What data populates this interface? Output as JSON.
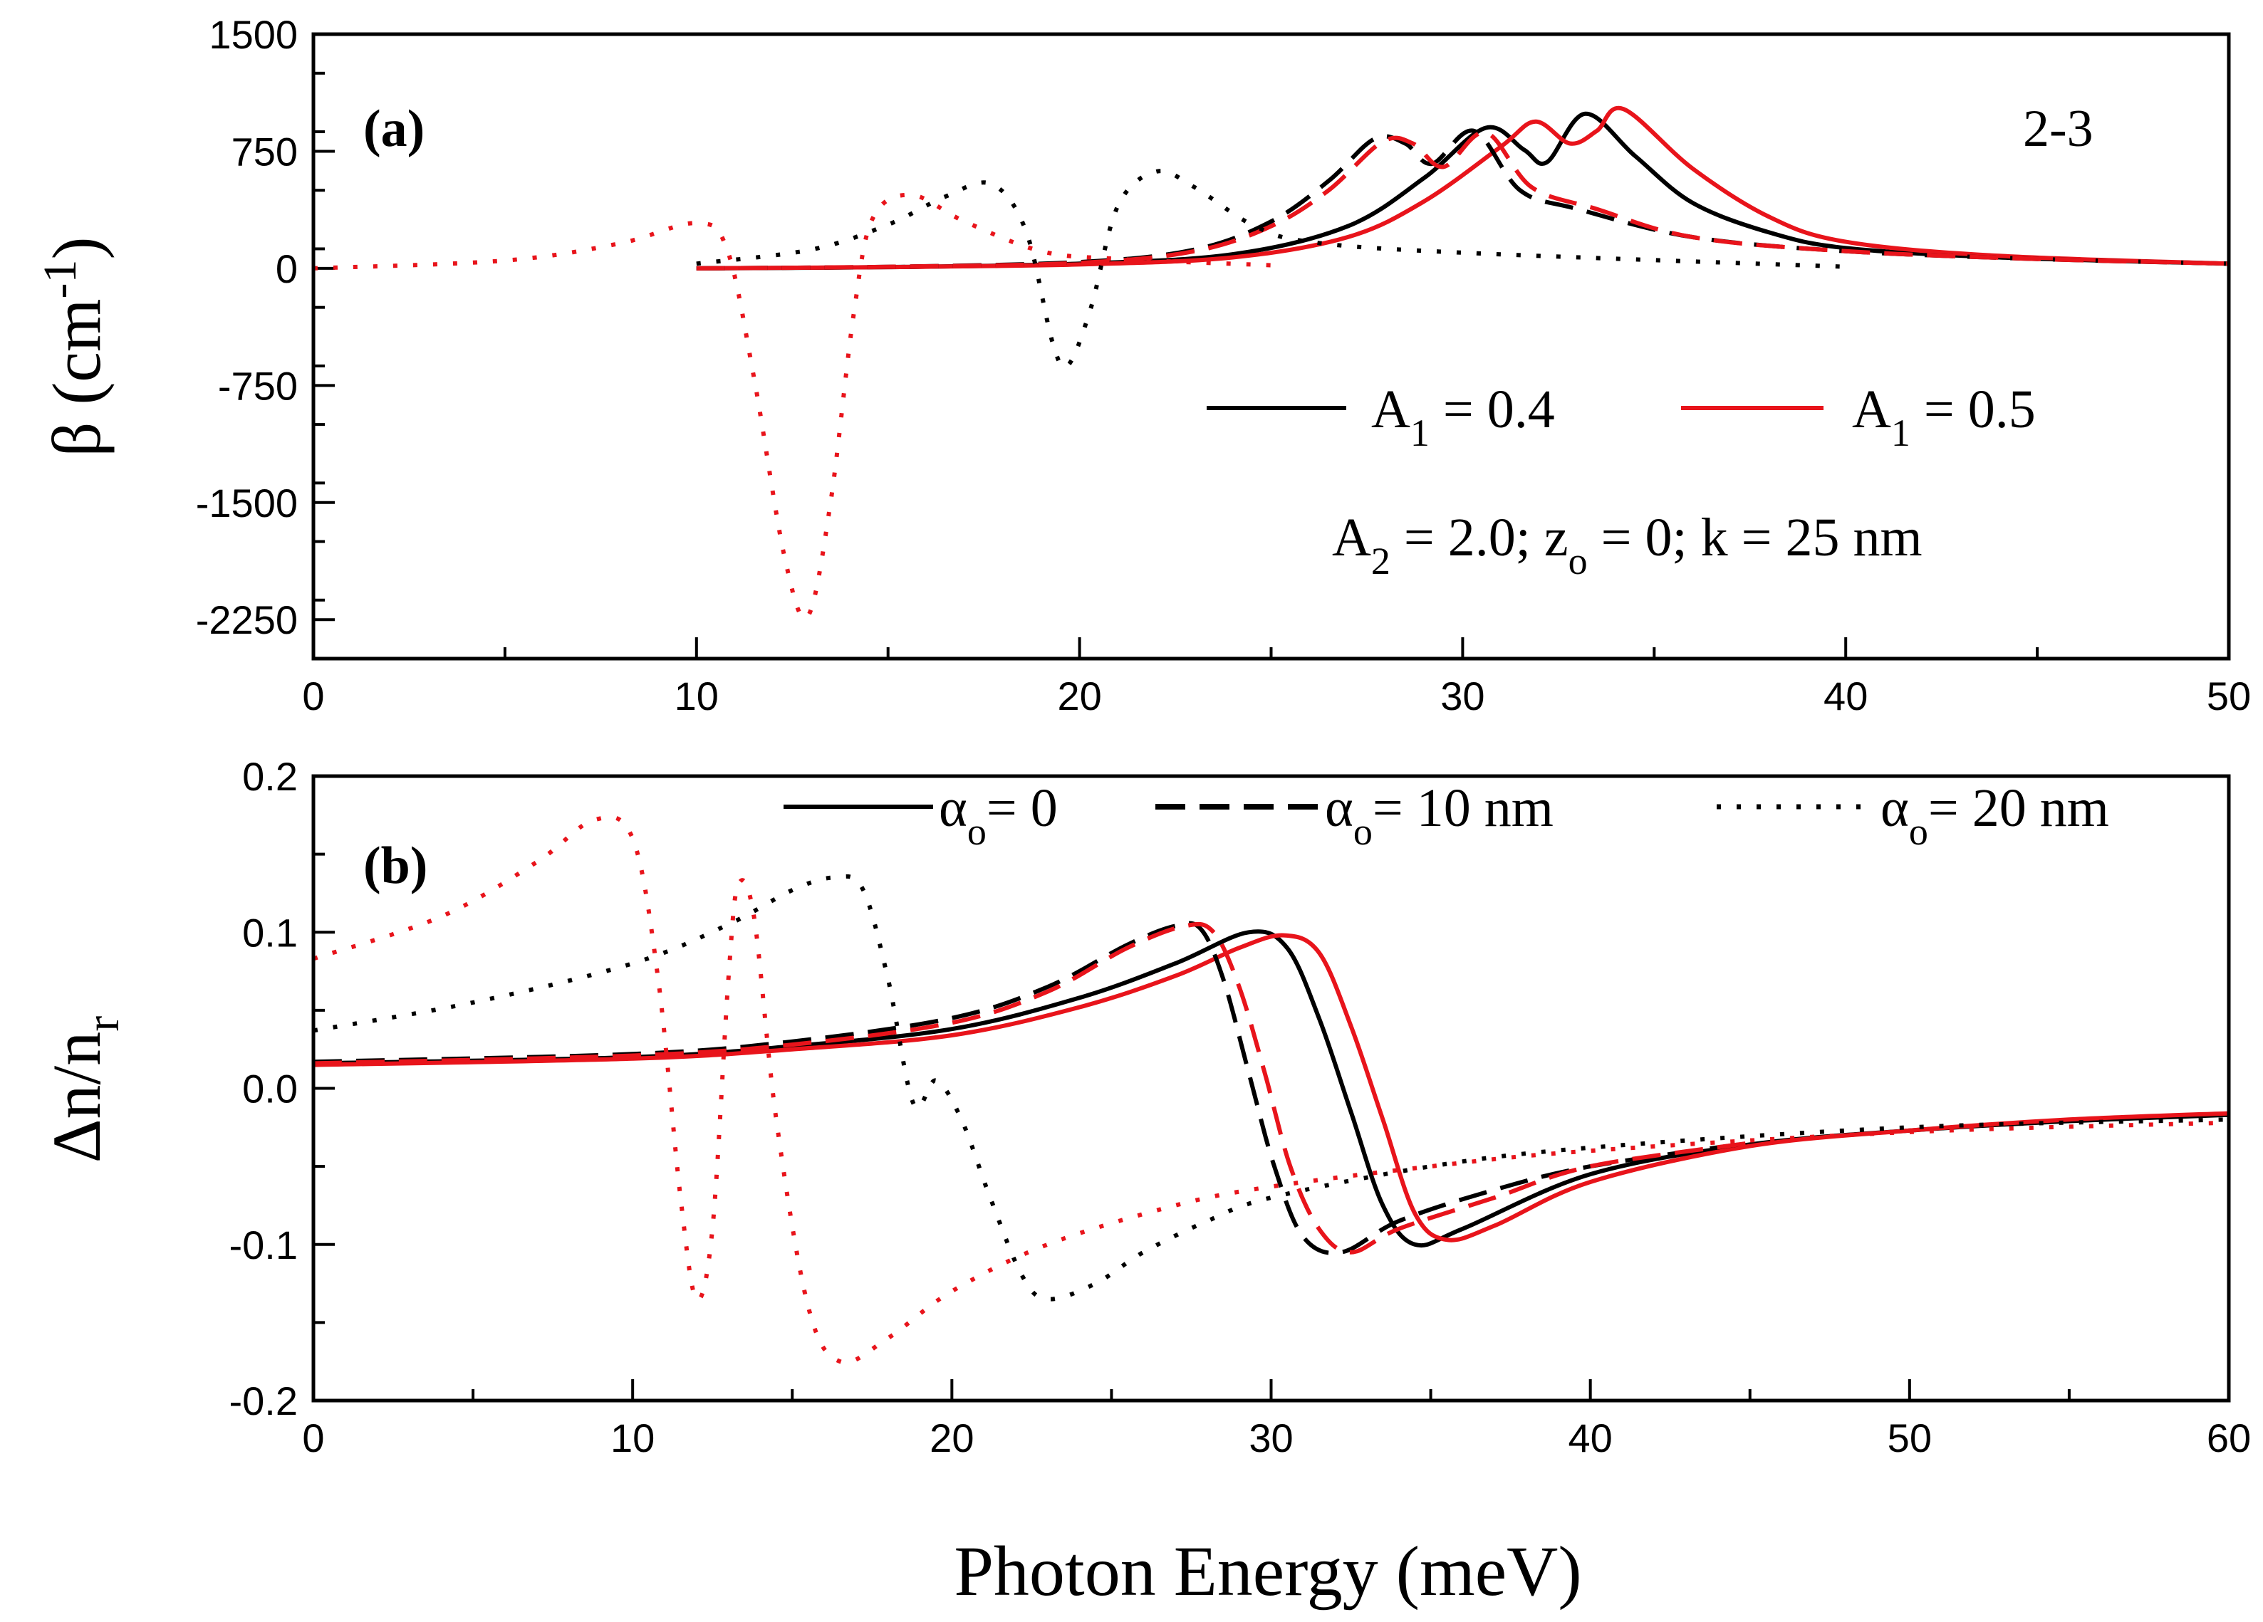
{
  "chart_data": [
    {
      "id": "a",
      "type": "line",
      "panel_label": "(a)",
      "corner_label": "2-3",
      "xlabel": "",
      "ylabel": "β (cm⁻¹)",
      "xlim": [
        0,
        50
      ],
      "ylim": [
        -2500,
        1500
      ],
      "xticks": [
        0,
        10,
        20,
        30,
        40,
        50
      ],
      "yticks": [
        1500,
        750,
        0,
        -750,
        -1500,
        -2250
      ],
      "ytick_labels": [
        "1500",
        "750",
        "0",
        "-750",
        "-1500",
        "-2250"
      ],
      "legend": [
        {
          "label": "A1 = 0.4",
          "color": "#000000"
        },
        {
          "label": "A1 = 0.5",
          "color": "#e8141b"
        }
      ],
      "annotation": "A2 = 2.0; zo = 0; k = 25 nm",
      "series": [
        {
          "name": "A1 = 0.4, αo = 0",
          "color": "#000000",
          "style": "solid",
          "x": [
            10,
            15,
            20,
            24,
            27,
            29,
            30.6,
            31.6,
            32.2,
            33.2,
            34.5,
            36,
            38,
            40,
            44,
            50
          ],
          "y": [
            0,
            8,
            30,
            90,
            270,
            580,
            900,
            760,
            680,
            990,
            720,
            420,
            230,
            130,
            70,
            30
          ]
        },
        {
          "name": "A1 = 0.5, αo = 0",
          "color": "#e8141b",
          "style": "solid",
          "x": [
            10,
            15,
            20,
            24,
            27,
            29,
            31,
            31.9,
            32.8,
            33.5,
            34.2,
            36,
            38,
            40,
            44,
            50
          ],
          "y": [
            0,
            8,
            25,
            70,
            200,
            430,
            780,
            940,
            800,
            880,
            1020,
            640,
            330,
            170,
            80,
            30
          ]
        },
        {
          "name": "A1 = 0.4, αo = 10 nm",
          "color": "#000000",
          "style": "dashed",
          "x": [
            10,
            15,
            20,
            23,
            25,
            26.5,
            27.7,
            28.5,
            29.2,
            30.3,
            31.5,
            33,
            36,
            40,
            45,
            50
          ],
          "y": [
            0,
            10,
            40,
            120,
            300,
            560,
            830,
            800,
            670,
            880,
            500,
            380,
            200,
            110,
            60,
            30
          ]
        },
        {
          "name": "A1 = 0.5, αo = 10 nm",
          "color": "#e8141b",
          "style": "dashed",
          "x": [
            10,
            15,
            20,
            23,
            25,
            26.5,
            27.9,
            28.7,
            29.5,
            30.6,
            31.8,
            33.5,
            36,
            40,
            45,
            50
          ],
          "y": [
            0,
            10,
            35,
            110,
            270,
            500,
            810,
            800,
            650,
            870,
            520,
            380,
            200,
            110,
            60,
            30
          ]
        },
        {
          "name": "A1 = 0.4, αo = 20 nm",
          "color": "#000000",
          "style": "dotted",
          "x": [
            10,
            13,
            15,
            16.5,
            17.7,
            18.6,
            19.3,
            19.7,
            20.3,
            21,
            22,
            23,
            24.5,
            26,
            30,
            40
          ],
          "y": [
            30,
            120,
            280,
            460,
            540,
            240,
            -480,
            -620,
            -250,
            400,
            620,
            520,
            280,
            170,
            100,
            10
          ]
        },
        {
          "name": "A1 = 0.5, αo = 20 nm",
          "color": "#e8141b",
          "style": "dotted",
          "x": [
            0,
            5,
            8,
            10,
            10.8,
            11.5,
            12.3,
            12.9,
            13.5,
            14.1,
            14.6,
            15.6,
            17,
            19,
            21,
            25
          ],
          "y": [
            0,
            50,
            160,
            290,
            120,
            -700,
            -1850,
            -2230,
            -1500,
            -300,
            320,
            470,
            300,
            110,
            60,
            20
          ]
        }
      ]
    },
    {
      "id": "b",
      "type": "line",
      "panel_label": "(b)",
      "xlabel": "Photon Energy (meV)",
      "ylabel": "Δn/nr",
      "xlim": [
        0,
        60
      ],
      "ylim": [
        -0.2,
        0.2
      ],
      "xticks": [
        0,
        10,
        20,
        30,
        40,
        50,
        60
      ],
      "yticks": [
        0.2,
        0.1,
        0.0,
        -0.1,
        -0.2
      ],
      "ytick_labels": [
        "0.2",
        "0.1",
        "0.0",
        "-0.1",
        "-0.2"
      ],
      "legend": [
        {
          "label": "αo = 0",
          "style": "solid"
        },
        {
          "label": "αo = 10 nm",
          "style": "dashed"
        },
        {
          "label": "αo = 20 nm",
          "style": "dotted"
        }
      ],
      "series": [
        {
          "name": "A1 = 0.4, αo = 0",
          "color": "#000000",
          "style": "solid",
          "x": [
            0,
            10,
            15,
            20,
            24,
            27,
            29.3,
            30.5,
            31.5,
            32.5,
            33.5,
            34.5,
            36,
            40,
            45,
            50,
            55,
            60
          ],
          "y": [
            0.016,
            0.02,
            0.027,
            0.038,
            0.058,
            0.08,
            0.1,
            0.09,
            0.045,
            -0.015,
            -0.075,
            -0.1,
            -0.09,
            -0.055,
            -0.036,
            -0.027,
            -0.021,
            -0.017
          ]
        },
        {
          "name": "A1 = 0.5, αo = 0",
          "color": "#e8141b",
          "style": "solid",
          "x": [
            0,
            10,
            15,
            20,
            24,
            27,
            29,
            30.4,
            31.5,
            32.5,
            33.5,
            34.5,
            35.5,
            37,
            40,
            45,
            50,
            55,
            60
          ],
          "y": [
            0.015,
            0.019,
            0.025,
            0.034,
            0.052,
            0.072,
            0.09,
            0.098,
            0.087,
            0.04,
            -0.02,
            -0.08,
            -0.097,
            -0.088,
            -0.06,
            -0.037,
            -0.027,
            -0.02,
            -0.016
          ]
        },
        {
          "name": "A1 = 0.4, αo = 10 nm",
          "color": "#000000",
          "style": "dashed",
          "x": [
            0,
            10,
            15,
            20,
            23,
            25.5,
            27,
            27.8,
            28.5,
            29.3,
            30.1,
            31,
            32.2,
            34,
            37,
            40,
            45
          ],
          "y": [
            0.017,
            0.022,
            0.03,
            0.045,
            0.065,
            0.092,
            0.104,
            0.102,
            0.07,
            0.01,
            -0.05,
            -0.095,
            -0.105,
            -0.085,
            -0.065,
            -0.05,
            -0.035
          ]
        },
        {
          "name": "A1 = 0.5, αo = 10 nm",
          "color": "#e8141b",
          "style": "dashed",
          "x": [
            0,
            10,
            15,
            20,
            23,
            25.5,
            27.3,
            28.2,
            29,
            29.8,
            30.6,
            31.5,
            32.5,
            34,
            37,
            40,
            45
          ],
          "y": [
            0.016,
            0.021,
            0.028,
            0.042,
            0.062,
            0.09,
            0.104,
            0.1,
            0.065,
            0.01,
            -0.05,
            -0.09,
            -0.105,
            -0.09,
            -0.07,
            -0.05,
            -0.035
          ]
        },
        {
          "name": "A1 = 0.4, αo = 20 nm",
          "color": "#000000",
          "style": "dotted",
          "x": [
            0,
            5,
            10,
            13,
            15,
            16.3,
            17.2,
            18,
            18.8,
            19.5,
            20.3,
            21.2,
            22.2,
            23,
            24.5,
            26,
            28,
            30,
            35,
            40,
            50,
            60
          ],
          "y": [
            0.037,
            0.055,
            0.08,
            0.105,
            0.127,
            0.135,
            0.128,
            0.07,
            -0.01,
            0.005,
            -0.02,
            -0.07,
            -0.12,
            -0.135,
            -0.125,
            -0.105,
            -0.085,
            -0.07,
            -0.05,
            -0.038,
            -0.025,
            -0.02
          ]
        },
        {
          "name": "A1 = 0.5, αo = 20 nm",
          "color": "#e8141b",
          "style": "dotted",
          "x": [
            0,
            4,
            7,
            8.8,
            10,
            10.8,
            11.5,
            12,
            12.5,
            13,
            13.3,
            13.8,
            14.5,
            15.5,
            16.5,
            18,
            20,
            23,
            27,
            30,
            35,
            40,
            50,
            60
          ],
          "y": [
            0.083,
            0.11,
            0.145,
            0.172,
            0.16,
            0.07,
            -0.07,
            -0.135,
            -0.09,
            0.07,
            0.13,
            0.11,
            -0.02,
            -0.14,
            -0.175,
            -0.16,
            -0.13,
            -0.1,
            -0.075,
            -0.063,
            -0.05,
            -0.04,
            -0.028,
            -0.022
          ]
        }
      ]
    }
  ]
}
